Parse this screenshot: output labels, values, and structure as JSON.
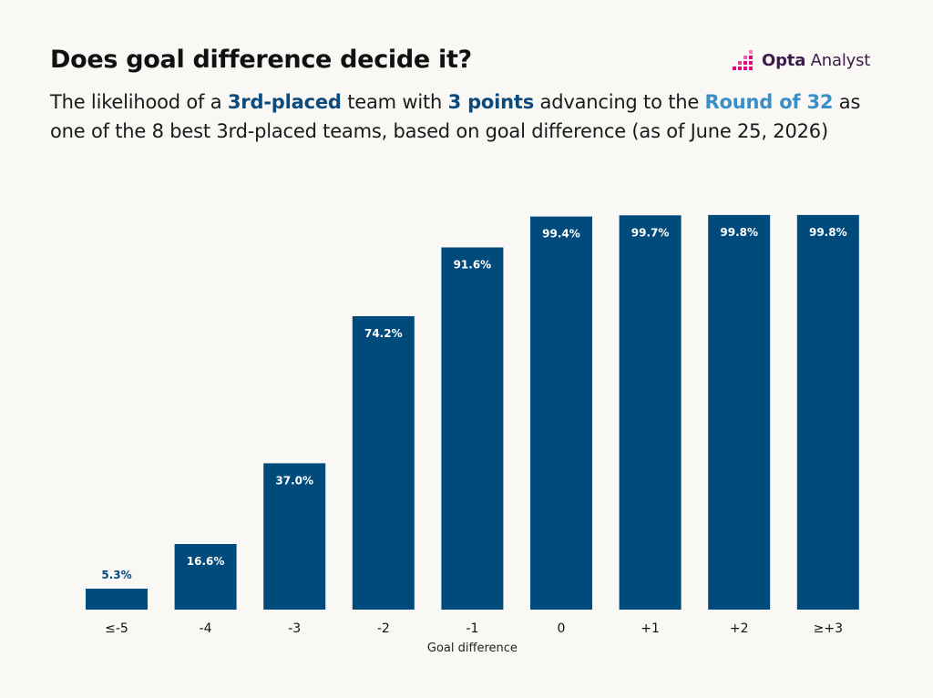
{
  "header": {
    "title": "Does goal difference decide it?",
    "subtitle_parts": [
      {
        "text": "The likelihood of a ",
        "highlight": false
      },
      {
        "text": "3rd-placed",
        "highlight": true,
        "color": "#0c4a7c"
      },
      {
        "text": " team with ",
        "highlight": false
      },
      {
        "text": "3 points",
        "highlight": true,
        "color": "#0c4a7c"
      },
      {
        "text": " advancing to the ",
        "highlight": false
      },
      {
        "text": "Round of 32",
        "highlight": true,
        "color": "#3a8fc8"
      },
      {
        "text": " as one of the 8 best 3rd-placed teams, based on goal difference (as of June 25, 2026)",
        "highlight": false
      }
    ]
  },
  "logo": {
    "name": "opta-analyst-logo",
    "text_strong": "Opta",
    "text_light": "Analyst",
    "mark_color": "#e5007e"
  },
  "colors": {
    "bar": "#004a7c",
    "label_inside": "#ffffff",
    "label_outside": "#004a7c",
    "background": "#faf8f5"
  },
  "chart_data": {
    "type": "bar",
    "categories": [
      "≤-5",
      "-4",
      "-3",
      "-2",
      "-1",
      "0",
      "+1",
      "+2",
      "≥+3"
    ],
    "values": [
      5.3,
      16.6,
      37.0,
      74.2,
      91.6,
      99.4,
      99.7,
      99.8,
      99.8
    ],
    "value_labels": [
      "5.3%",
      "16.6%",
      "37.0%",
      "74.2%",
      "91.6%",
      "99.4%",
      "99.7%",
      "99.8%",
      "99.8%"
    ],
    "title": "",
    "xlabel": "Goal difference",
    "ylabel": "",
    "ylim": [
      0,
      100
    ],
    "grid": false,
    "legend": "none"
  }
}
